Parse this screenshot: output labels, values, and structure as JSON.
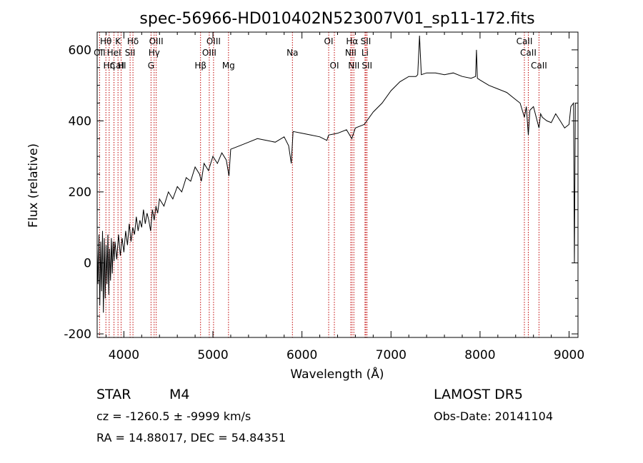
{
  "chart_data": {
    "type": "line",
    "title": "spec-56966-HD010402N523007V01_sp11-172.fits",
    "xlabel": "Wavelength (Å)",
    "ylabel": "Flux (relative)",
    "xlim": [
      3700,
      9100
    ],
    "ylim": [
      -210,
      650
    ],
    "xticks": [
      4000,
      5000,
      6000,
      7000,
      8000,
      9000
    ],
    "yticks": [
      -200,
      0,
      200,
      400,
      600
    ],
    "grid": false,
    "series": [
      {
        "values": [
          [
            3700,
            40
          ],
          [
            3710,
            -60
          ],
          [
            3720,
            80
          ],
          [
            3730,
            -120
          ],
          [
            3740,
            60
          ],
          [
            3750,
            -80
          ],
          [
            3760,
            90
          ],
          [
            3770,
            -140
          ],
          [
            3780,
            70
          ],
          [
            3790,
            -100
          ],
          [
            3800,
            50
          ],
          [
            3810,
            -60
          ],
          [
            3820,
            80
          ],
          [
            3830,
            -90
          ],
          [
            3840,
            40
          ],
          [
            3850,
            -50
          ],
          [
            3860,
            70
          ],
          [
            3870,
            -30
          ],
          [
            3880,
            60
          ],
          [
            3890,
            5
          ],
          [
            3900,
            60
          ],
          [
            3920,
            10
          ],
          [
            3940,
            80
          ],
          [
            3960,
            20
          ],
          [
            3980,
            70
          ],
          [
            4000,
            30
          ],
          [
            4020,
            90
          ],
          [
            4040,
            50
          ],
          [
            4060,
            110
          ],
          [
            4080,
            60
          ],
          [
            4100,
            100
          ],
          [
            4120,
            80
          ],
          [
            4140,
            130
          ],
          [
            4160,
            90
          ],
          [
            4180,
            120
          ],
          [
            4200,
            100
          ],
          [
            4220,
            150
          ],
          [
            4240,
            110
          ],
          [
            4260,
            140
          ],
          [
            4280,
            120
          ],
          [
            4300,
            90
          ],
          [
            4320,
            150
          ],
          [
            4340,
            120
          ],
          [
            4360,
            160
          ],
          [
            4380,
            140
          ],
          [
            4400,
            180
          ],
          [
            4450,
            160
          ],
          [
            4500,
            200
          ],
          [
            4550,
            180
          ],
          [
            4600,
            215
          ],
          [
            4650,
            200
          ],
          [
            4700,
            240
          ],
          [
            4750,
            230
          ],
          [
            4800,
            270
          ],
          [
            4850,
            250
          ],
          [
            4870,
            230
          ],
          [
            4900,
            280
          ],
          [
            4950,
            260
          ],
          [
            5000,
            300
          ],
          [
            5050,
            280
          ],
          [
            5100,
            310
          ],
          [
            5150,
            290
          ],
          [
            5180,
            245
          ],
          [
            5200,
            320
          ],
          [
            5300,
            330
          ],
          [
            5400,
            340
          ],
          [
            5500,
            350
          ],
          [
            5600,
            345
          ],
          [
            5700,
            340
          ],
          [
            5800,
            355
          ],
          [
            5850,
            330
          ],
          [
            5880,
            280
          ],
          [
            5900,
            370
          ],
          [
            6000,
            365
          ],
          [
            6100,
            360
          ],
          [
            6200,
            355
          ],
          [
            6280,
            345
          ],
          [
            6300,
            360
          ],
          [
            6400,
            365
          ],
          [
            6500,
            375
          ],
          [
            6560,
            350
          ],
          [
            6600,
            380
          ],
          [
            6700,
            390
          ],
          [
            6800,
            425
          ],
          [
            6900,
            450
          ],
          [
            7000,
            485
          ],
          [
            7100,
            510
          ],
          [
            7200,
            525
          ],
          [
            7280,
            525
          ],
          [
            7300,
            530
          ],
          [
            7320,
            640
          ],
          [
            7340,
            530
          ],
          [
            7400,
            535
          ],
          [
            7500,
            535
          ],
          [
            7600,
            530
          ],
          [
            7700,
            535
          ],
          [
            7800,
            525
          ],
          [
            7900,
            520
          ],
          [
            7950,
            525
          ],
          [
            7960,
            600
          ],
          [
            7970,
            520
          ],
          [
            8000,
            515
          ],
          [
            8100,
            500
          ],
          [
            8200,
            490
          ],
          [
            8300,
            480
          ],
          [
            8400,
            460
          ],
          [
            8450,
            450
          ],
          [
            8498,
            410
          ],
          [
            8520,
            440
          ],
          [
            8542,
            360
          ],
          [
            8560,
            430
          ],
          [
            8600,
            440
          ],
          [
            8662,
            380
          ],
          [
            8680,
            420
          ],
          [
            8700,
            410
          ],
          [
            8750,
            400
          ],
          [
            8800,
            395
          ],
          [
            8850,
            420
          ],
          [
            8900,
            400
          ],
          [
            8950,
            380
          ],
          [
            9000,
            390
          ],
          [
            9020,
            440
          ],
          [
            9050,
            450
          ],
          [
            9060,
            0
          ],
          [
            9070,
            450
          ],
          [
            9080,
            450
          ]
        ]
      }
    ],
    "spectral_lines": [
      {
        "label": "Hθ",
        "wavelength": 3798,
        "row": 0
      },
      {
        "label": "OII",
        "wavelength": 3727,
        "row": 1
      },
      {
        "label": "CaII",
        "wavelength": 3934,
        "row": 2
      },
      {
        "label": "K",
        "wavelength": 3934,
        "row": 0
      },
      {
        "label": "Hη",
        "wavelength": 3835,
        "row": 2
      },
      {
        "label": "HeI",
        "wavelength": 3889,
        "row": 1
      },
      {
        "label": "SII",
        "wavelength": 4070,
        "row": 1
      },
      {
        "label": "H",
        "wavelength": 3969,
        "row": 2
      },
      {
        "label": "Hδ",
        "wavelength": 4102,
        "row": 0
      },
      {
        "label": "OIII",
        "wavelength": 4363,
        "row": 0
      },
      {
        "label": "Hγ",
        "wavelength": 4340,
        "row": 1
      },
      {
        "label": "G",
        "wavelength": 4305,
        "row": 2
      },
      {
        "label": "OIII",
        "wavelength": 5007,
        "row": 0
      },
      {
        "label": "OIII",
        "wavelength": 4959,
        "row": 1
      },
      {
        "label": "Hβ",
        "wavelength": 4861,
        "row": 2
      },
      {
        "label": "Mg",
        "wavelength": 5175,
        "row": 2
      },
      {
        "label": "Na",
        "wavelength": 5893,
        "row": 1
      },
      {
        "label": "OI",
        "wavelength": 6300,
        "row": 0
      },
      {
        "label": "OI",
        "wavelength": 6364,
        "row": 2
      },
      {
        "label": "Hα",
        "wavelength": 6563,
        "row": 0
      },
      {
        "label": "SII",
        "wavelength": 6717,
        "row": 0
      },
      {
        "label": "NII",
        "wavelength": 6548,
        "row": 1
      },
      {
        "label": "Li",
        "wavelength": 6708,
        "row": 1
      },
      {
        "label": "NII",
        "wavelength": 6583,
        "row": 2
      },
      {
        "label": "SII",
        "wavelength": 6731,
        "row": 2
      },
      {
        "label": "CaII",
        "wavelength": 8498,
        "row": 0
      },
      {
        "label": "CaII",
        "wavelength": 8542,
        "row": 1
      },
      {
        "label": "CaII",
        "wavelength": 8662,
        "row": 2
      }
    ],
    "line_color": "#000000",
    "marker_color": "#c00000"
  },
  "info": {
    "class_label": "STAR",
    "subclass": "M4",
    "cz_line": "cz = -1260.5 ± -9999 km/s",
    "radec_line": "RA =  14.88017, DEC =  54.84351",
    "survey": "LAMOST DR5",
    "obs_date": "Obs-Date: 20141104"
  }
}
